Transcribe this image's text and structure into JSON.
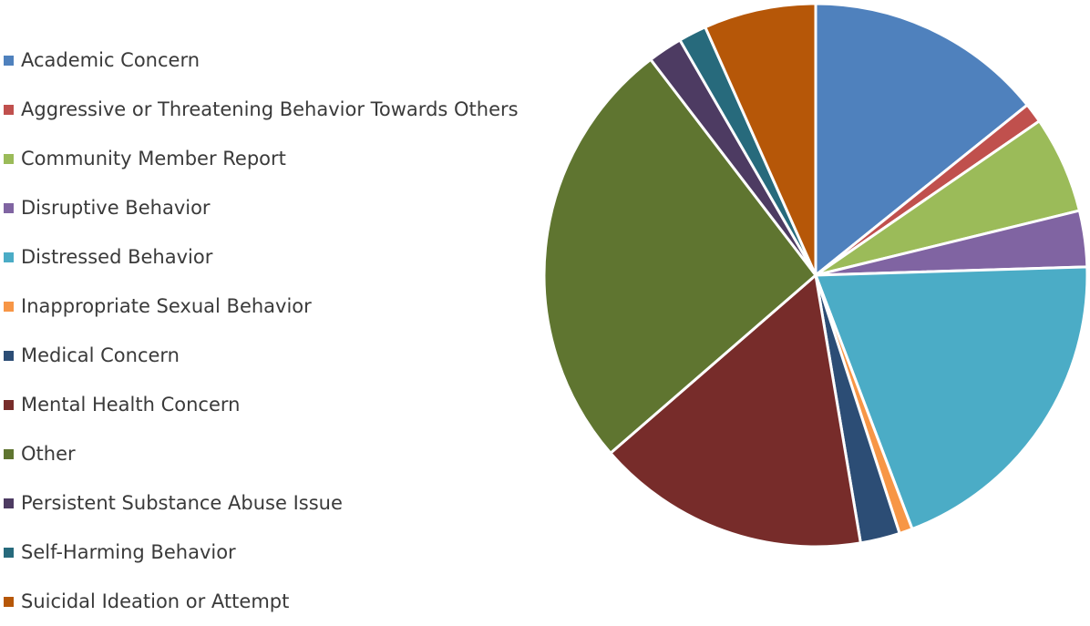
{
  "chart_data": {
    "type": "pie",
    "title": "",
    "legend_position": "left",
    "start_angle_deg": 0,
    "direction": "clockwise",
    "slices": [
      {
        "label": "Academic Concern",
        "value": 14.5,
        "color": "#4f81bd"
      },
      {
        "label": "Aggressive or Threatening Behavior Towards Others",
        "value": 1.2,
        "color": "#c0504d"
      },
      {
        "label": "Community Member Report",
        "value": 5.9,
        "color": "#9bbb59"
      },
      {
        "label": "Disruptive Behavior",
        "value": 3.4,
        "color": "#8064a2"
      },
      {
        "label": "Distressed Behavior",
        "value": 20.1,
        "color": "#4bacc6"
      },
      {
        "label": "Inappropriate Sexual Behavior",
        "value": 0.8,
        "color": "#f79646"
      },
      {
        "label": "Medical Concern",
        "value": 2.4,
        "color": "#2c4d75"
      },
      {
        "label": "Mental Health Concern",
        "value": 16.6,
        "color": "#772c2a"
      },
      {
        "label": "Other",
        "value": 26.5,
        "color": "#5f7530"
      },
      {
        "label": "Persistent Substance Abuse Issue",
        "value": 2.1,
        "color": "#4d3b62"
      },
      {
        "label": "Self-Harming Behavior",
        "value": 1.7,
        "color": "#276a7c"
      },
      {
        "label": "Suicidal Ideation or Attempt",
        "value": 6.8,
        "color": "#b65708"
      }
    ]
  }
}
